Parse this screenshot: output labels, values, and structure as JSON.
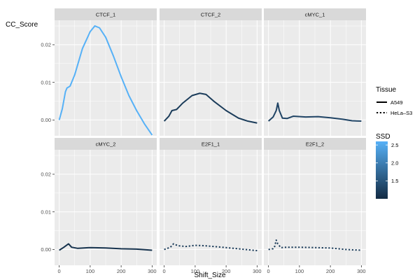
{
  "chart_data": {
    "type": "line",
    "xlabel": "Shift_Size",
    "ylabel": "CC_Score",
    "xlim": [
      -15,
      315
    ],
    "ylim": [
      -0.0042,
      0.0265
    ],
    "x_ticks": [
      0,
      100,
      200,
      300
    ],
    "x_tick_labels": [
      "0",
      "100",
      "200",
      "300"
    ],
    "y_ticks": [
      0.0,
      0.01,
      0.02
    ],
    "y_tick_labels": [
      "0.00",
      "0.01",
      "0.02"
    ],
    "grid": true,
    "legend_position": "right",
    "facets": [
      {
        "label": "CTCF_1",
        "tissue": "A549",
        "ssd": 2.6,
        "points": [
          [
            0,
            0.0
          ],
          [
            10,
            0.003
          ],
          [
            20,
            0.0075
          ],
          [
            25,
            0.0085
          ],
          [
            35,
            0.009
          ],
          [
            50,
            0.012
          ],
          [
            75,
            0.019
          ],
          [
            100,
            0.0235
          ],
          [
            115,
            0.025
          ],
          [
            130,
            0.0245
          ],
          [
            150,
            0.022
          ],
          [
            175,
            0.017
          ],
          [
            200,
            0.0115
          ],
          [
            225,
            0.0065
          ],
          [
            250,
            0.0025
          ],
          [
            275,
            -0.001
          ],
          [
            300,
            -0.004
          ]
        ]
      },
      {
        "label": "CTCF_2",
        "tissue": "A549",
        "ssd": 1.2,
        "points": [
          [
            0,
            -0.0003
          ],
          [
            15,
            0.001
          ],
          [
            25,
            0.0025
          ],
          [
            40,
            0.0028
          ],
          [
            60,
            0.0045
          ],
          [
            90,
            0.0065
          ],
          [
            115,
            0.0071
          ],
          [
            135,
            0.0068
          ],
          [
            160,
            0.005
          ],
          [
            200,
            0.0025
          ],
          [
            240,
            0.0005
          ],
          [
            270,
            -0.0003
          ],
          [
            300,
            -0.0008
          ]
        ]
      },
      {
        "label": "cMYC_1",
        "tissue": "A549",
        "ssd": 1.3,
        "points": [
          [
            0,
            -0.0003
          ],
          [
            15,
            0.0008
          ],
          [
            25,
            0.0025
          ],
          [
            30,
            0.0045
          ],
          [
            35,
            0.0025
          ],
          [
            45,
            0.0005
          ],
          [
            60,
            0.0004
          ],
          [
            80,
            0.001
          ],
          [
            120,
            0.0008
          ],
          [
            160,
            0.0009
          ],
          [
            200,
            0.0006
          ],
          [
            240,
            0.0002
          ],
          [
            270,
            -0.0002
          ],
          [
            300,
            -0.0003
          ]
        ]
      },
      {
        "label": "cMYC_2",
        "tissue": "A549",
        "ssd": 1.1,
        "points": [
          [
            0,
            -0.0002
          ],
          [
            15,
            0.0006
          ],
          [
            30,
            0.0015
          ],
          [
            40,
            0.0006
          ],
          [
            60,
            0.0003
          ],
          [
            100,
            0.0005
          ],
          [
            150,
            0.0004
          ],
          [
            200,
            0.0002
          ],
          [
            250,
            0.0001
          ],
          [
            300,
            -0.0002
          ]
        ]
      },
      {
        "label": "E2F1_1",
        "tissue": "HeLa-S3",
        "ssd": 1.2,
        "points": [
          [
            0,
            0.0
          ],
          [
            20,
            0.0006
          ],
          [
            30,
            0.0015
          ],
          [
            45,
            0.001
          ],
          [
            70,
            0.0008
          ],
          [
            100,
            0.0011
          ],
          [
            130,
            0.001
          ],
          [
            160,
            0.0008
          ],
          [
            200,
            0.0005
          ],
          [
            250,
            0.0001
          ],
          [
            300,
            -0.0003
          ]
        ]
      },
      {
        "label": "E2F1_2",
        "tissue": "HeLa-S3",
        "ssd": 1.2,
        "points": [
          [
            0,
            0.0
          ],
          [
            15,
            0.0002
          ],
          [
            20,
            0.0008
          ],
          [
            25,
            0.0025
          ],
          [
            30,
            0.0015
          ],
          [
            40,
            0.0005
          ],
          [
            60,
            0.0006
          ],
          [
            100,
            0.0006
          ],
          [
            150,
            0.0005
          ],
          [
            200,
            0.0004
          ],
          [
            250,
            0.0
          ],
          [
            300,
            -0.0002
          ]
        ]
      }
    ],
    "legends": {
      "tissue": {
        "title": "Tissue",
        "entries": [
          {
            "label": "A549",
            "linetype": "solid"
          },
          {
            "label": "HeLa–S3",
            "linetype": "dotted"
          }
        ]
      },
      "ssd": {
        "title": "SSD",
        "min": 1.0,
        "max": 2.6,
        "breaks": [
          1.5,
          2.0,
          2.5
        ],
        "break_labels": [
          "1.5",
          "2.0",
          "2.5"
        ],
        "low_color": "#132B43",
        "high_color": "#56B1F7"
      }
    },
    "colors": {
      "panel_bg": "#EBEBEB",
      "strip_bg": "#D9D9D9",
      "grid": "#FFFFFF",
      "tick": "#333333"
    }
  }
}
